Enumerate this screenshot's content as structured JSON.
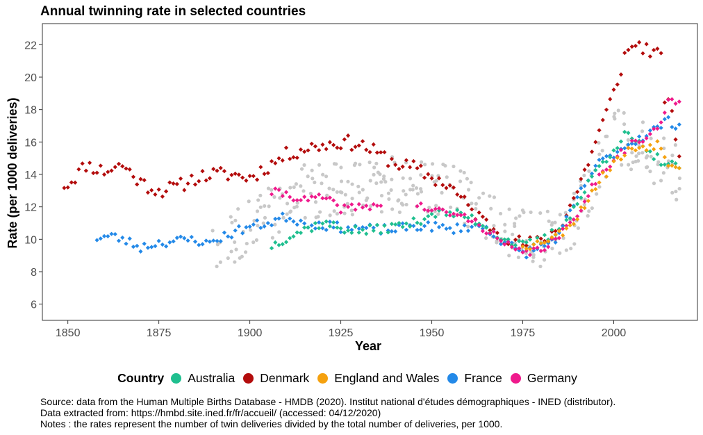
{
  "colors": {
    "australia": "#1fbf8f",
    "denmark": "#b30c0c",
    "england": "#f5a10f",
    "france": "#2389e8",
    "germany": "#ef1a8c",
    "others": "#c8c8c8"
  },
  "legend": {
    "title": "Country",
    "items": [
      {
        "label": "Australia",
        "color": "#1fbf8f"
      },
      {
        "label": "Denmark",
        "color": "#b30c0c"
      },
      {
        "label": "England and Wales",
        "color": "#f5a10f"
      },
      {
        "label": "France",
        "color": "#2389e8"
      },
      {
        "label": "Germany",
        "color": "#ef1a8c"
      }
    ]
  },
  "caption": {
    "line1": "Source: data from the Human Multiple Births Database - HMDB (2020). Institut national d'études démographiques - INED (distributor).",
    "line2": "Data extracted from: https://hmbd.site.ined.fr/fr/accueil/ (accessed: 04/12/2020)",
    "line3": "Notes : the rates represent the number of twin deliveries divided by the total number of deliveries, per 1000."
  },
  "chart_data": {
    "type": "scatter",
    "title": "Annual twinning rate in selected countries",
    "xlabel": "Year",
    "ylabel": "Rate (per 1000 deliveries)",
    "xlim": [
      1843,
      2023
    ],
    "ylim": [
      5,
      23.3
    ],
    "xticks": [
      1850,
      1875,
      1900,
      1925,
      1950,
      1975,
      2000
    ],
    "yticks": [
      6,
      8,
      10,
      12,
      14,
      16,
      18,
      20,
      22
    ],
    "series": [
      {
        "name": "Denmark",
        "color": "#b30c0c",
        "anchors": [
          [
            1850,
            13.4
          ],
          [
            1855,
            14.6
          ],
          [
            1860,
            14.2
          ],
          [
            1865,
            14.6
          ],
          [
            1870,
            13.5
          ],
          [
            1875,
            13.0
          ],
          [
            1880,
            13.2
          ],
          [
            1885,
            13.8
          ],
          [
            1890,
            14.0
          ],
          [
            1895,
            14.0
          ],
          [
            1900,
            13.8
          ],
          [
            1905,
            14.5
          ],
          [
            1910,
            15.2
          ],
          [
            1915,
            15.6
          ],
          [
            1920,
            15.8
          ],
          [
            1925,
            16.0
          ],
          [
            1930,
            15.9
          ],
          [
            1935,
            15.3
          ],
          [
            1940,
            14.7
          ],
          [
            1945,
            14.4
          ],
          [
            1950,
            13.8
          ],
          [
            1955,
            13.3
          ],
          [
            1960,
            12.0
          ],
          [
            1965,
            11.0
          ],
          [
            1970,
            10.2
          ],
          [
            1975,
            9.7
          ],
          [
            1980,
            9.8
          ],
          [
            1985,
            10.7
          ],
          [
            1990,
            13.0
          ],
          [
            1995,
            16.0
          ],
          [
            2000,
            19.0
          ],
          [
            2003,
            21.3
          ],
          [
            2006,
            22.1
          ],
          [
            2010,
            21.6
          ],
          [
            2013,
            21.2
          ],
          [
            2014,
            18.8
          ],
          [
            2016,
            17.6
          ],
          [
            2018,
            15.2
          ]
        ],
        "start": 1849,
        "end": 2018,
        "jitter": 0.45,
        "seed": 11
      },
      {
        "name": "France",
        "color": "#2389e8",
        "anchors": [
          [
            1858,
            10.1
          ],
          [
            1862,
            10.2
          ],
          [
            1866,
            9.9
          ],
          [
            1870,
            9.5
          ],
          [
            1875,
            9.8
          ],
          [
            1880,
            9.9
          ],
          [
            1885,
            10.0
          ],
          [
            1888,
            9.7
          ],
          [
            1893,
            10.2
          ],
          [
            1900,
            10.8
          ],
          [
            1905,
            11.0
          ],
          [
            1910,
            11.4
          ],
          [
            1915,
            11.0
          ],
          [
            1920,
            10.9
          ],
          [
            1925,
            10.7
          ],
          [
            1930,
            10.7
          ],
          [
            1935,
            10.6
          ],
          [
            1940,
            10.6
          ],
          [
            1945,
            10.8
          ],
          [
            1950,
            10.8
          ],
          [
            1955,
            10.6
          ],
          [
            1960,
            10.8
          ],
          [
            1965,
            10.7
          ],
          [
            1970,
            9.8
          ],
          [
            1975,
            9.1
          ],
          [
            1980,
            9.5
          ],
          [
            1985,
            10.2
          ],
          [
            1990,
            12.5
          ],
          [
            1995,
            14.5
          ],
          [
            2000,
            15.3
          ],
          [
            2005,
            16.0
          ],
          [
            2010,
            16.6
          ],
          [
            2015,
            17.3
          ],
          [
            2018,
            17.0
          ]
        ],
        "start": 1858,
        "end": 2018,
        "jitter": 0.3,
        "seed": 23
      },
      {
        "name": "Australia",
        "color": "#1fbf8f",
        "anchors": [
          [
            1906,
            9.6
          ],
          [
            1910,
            10.1
          ],
          [
            1915,
            10.6
          ],
          [
            1920,
            11.0
          ],
          [
            1925,
            10.7
          ],
          [
            1930,
            10.5
          ],
          [
            1935,
            10.6
          ],
          [
            1940,
            10.8
          ],
          [
            1945,
            11.0
          ],
          [
            1950,
            11.6
          ],
          [
            1955,
            11.6
          ],
          [
            1960,
            11.4
          ],
          [
            1965,
            10.8
          ],
          [
            1970,
            10.0
          ],
          [
            1975,
            9.6
          ],
          [
            1980,
            9.9
          ],
          [
            1985,
            10.6
          ],
          [
            1990,
            12.2
          ],
          [
            1995,
            14.2
          ],
          [
            2000,
            15.6
          ],
          [
            2003,
            16.4
          ],
          [
            2006,
            16.1
          ],
          [
            2009,
            15.3
          ],
          [
            2012,
            15.0
          ],
          [
            2015,
            14.6
          ],
          [
            2018,
            14.4
          ]
        ],
        "start": 1906,
        "end": 2018,
        "jitter": 0.3,
        "seed": 37
      },
      {
        "name": "Germany",
        "color": "#ef1a8c",
        "anchors": [
          [
            1906,
            12.9
          ],
          [
            1910,
            12.8
          ],
          [
            1915,
            12.4
          ],
          [
            1920,
            12.6
          ],
          [
            1925,
            11.9
          ],
          [
            1930,
            12.0
          ],
          [
            1935,
            12.1
          ],
          [
            1946,
            12.1
          ],
          [
            1950,
            11.8
          ],
          [
            1955,
            11.6
          ],
          [
            1960,
            11.3
          ],
          [
            1965,
            10.6
          ],
          [
            1970,
            9.7
          ],
          [
            1975,
            9.1
          ],
          [
            1980,
            9.4
          ],
          [
            1985,
            10.1
          ],
          [
            1990,
            11.6
          ],
          [
            1995,
            13.6
          ],
          [
            2000,
            15.0
          ],
          [
            2005,
            15.9
          ],
          [
            2010,
            16.3
          ],
          [
            2013,
            17.3
          ],
          [
            2015,
            18.4
          ],
          [
            2018,
            18.4
          ]
        ],
        "start": 1906,
        "end": 2018,
        "gaps": [
          [
            1937,
            1945
          ]
        ],
        "jitter": 0.25,
        "seed": 41
      },
      {
        "name": "England and Wales",
        "color": "#f5a10f",
        "anchors": [
          [
            1975,
            9.7
          ],
          [
            1978,
            9.6
          ],
          [
            1980,
            9.9
          ],
          [
            1985,
            10.3
          ],
          [
            1990,
            11.4
          ],
          [
            1995,
            13.3
          ],
          [
            2000,
            14.7
          ],
          [
            2005,
            15.6
          ],
          [
            2010,
            15.8
          ],
          [
            2012,
            15.9
          ],
          [
            2015,
            14.8
          ],
          [
            2018,
            14.5
          ]
        ],
        "start": 1975,
        "end": 2018,
        "jitter": 0.3,
        "seed": 53
      },
      {
        "name": "Other countries",
        "color": "#c8c8c8",
        "anchors": [
          [
            1889,
            9.2
          ],
          [
            1895,
            10.0
          ],
          [
            1900,
            10.8
          ],
          [
            1905,
            11.5
          ],
          [
            1910,
            12.4
          ],
          [
            1915,
            12.9
          ],
          [
            1920,
            13.0
          ],
          [
            1925,
            13.0
          ],
          [
            1930,
            13.1
          ],
          [
            1935,
            13.3
          ],
          [
            1940,
            13.4
          ],
          [
            1945,
            13.2
          ],
          [
            1950,
            13.3
          ],
          [
            1955,
            13.0
          ],
          [
            1960,
            12.4
          ],
          [
            1965,
            11.5
          ],
          [
            1970,
            10.6
          ],
          [
            1975,
            10.1
          ],
          [
            1980,
            10.0
          ],
          [
            1985,
            10.4
          ],
          [
            1990,
            11.4
          ],
          [
            1995,
            14.0
          ],
          [
            2000,
            16.4
          ],
          [
            2005,
            16.0
          ],
          [
            2010,
            15.2
          ],
          [
            2015,
            14.4
          ],
          [
            2018,
            14.0
          ]
        ],
        "start": 1889,
        "end": 2018,
        "perYear": 4,
        "jitter": 1.7,
        "seed": 97
      }
    ]
  }
}
